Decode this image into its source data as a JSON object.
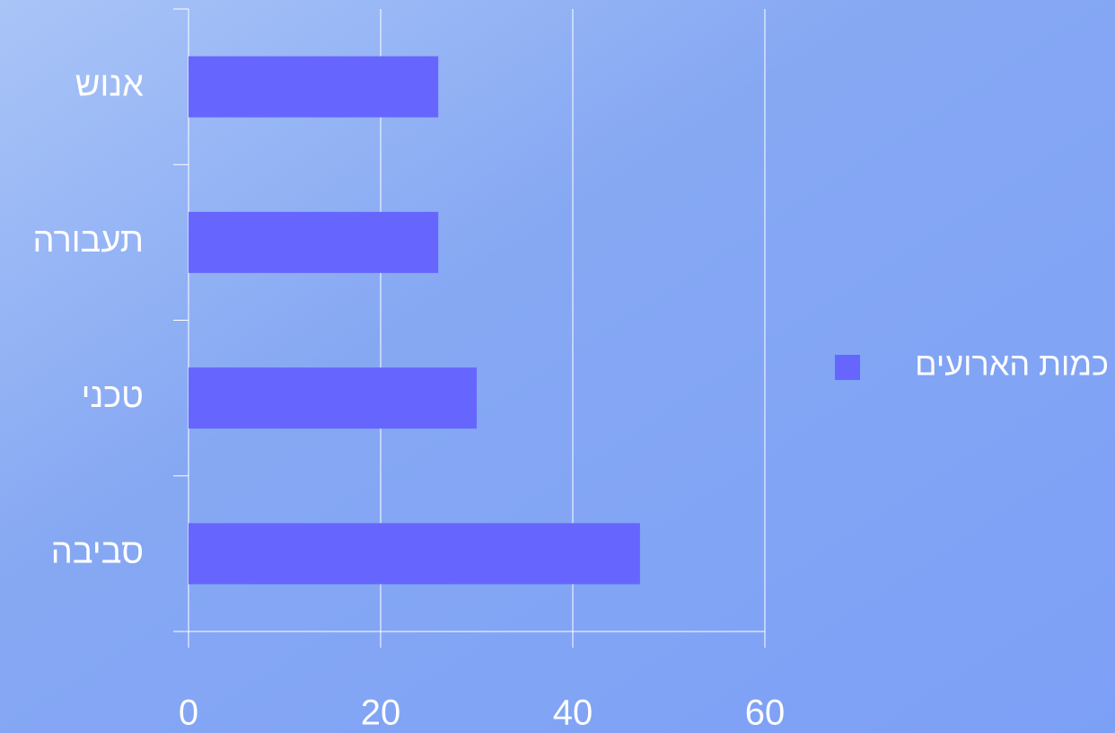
{
  "chart_data": {
    "type": "bar",
    "orientation": "horizontal",
    "categories": [
      "אנוש",
      "תעבורה",
      "טכני",
      "סביבה"
    ],
    "series": [
      {
        "name": "כמות הארועים",
        "color": "#6666ff",
        "values": [
          26,
          26,
          30,
          47
        ]
      }
    ],
    "xlim": [
      0,
      60
    ],
    "xticks": [
      0,
      20,
      40,
      60
    ],
    "grid": true,
    "legend": "right"
  }
}
